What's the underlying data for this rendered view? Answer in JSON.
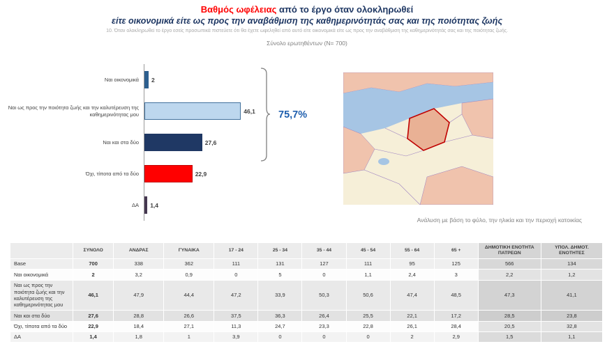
{
  "colors": {
    "title_red": "#ff0000",
    "title_navy": "#1f3864",
    "total_blue": "#1f5fae",
    "bar_nai_oikonomika": "#2d5f8f",
    "bar_poiotita_zois": "#bdd7ee",
    "bar_nai_kai_sta_dyo": "#1f3864",
    "bar_oxi": "#ff0000",
    "bar_da": "#453750"
  },
  "header": {
    "title_red": "Βαθμός ωφέλειας",
    "title_rest": " από το έργο όταν ολοκληρωθεί",
    "subtitle": "είτε οικονομικά είτε ως προς την αναβάθμιση της καθημερινότητάς σας και της ποιότητας ζωής",
    "question": "10. Όταν ολοκληρωθεί το έργο εσείς προσωπικά πιστεύετε ότι θα έχετε ωφεληθεί από αυτό είτε οικονομικά είτε ως προς την αναβάθμιση της καθημερινότητάς σας και της ποιότητας ζωής.",
    "sample": "Σύνολο ερωτηθέντων (N= 700)"
  },
  "chart_data": {
    "type": "bar",
    "orientation": "horizontal",
    "title": "Βαθμός ωφέλειας από το έργο όταν ολοκληρωθεί",
    "categories": [
      "Ναι οικονομικά",
      "Ναι ως προς την ποιότητα ζωής και την καλυτέρευση της καθημερινότητας μου",
      "Ναι και στα δύο",
      "Όχι, τίποτα από τα δύο",
      "ΔΑ"
    ],
    "values": [
      2,
      46.1,
      27.6,
      22.9,
      1.4
    ],
    "value_labels": [
      "2",
      "46,1",
      "27,6",
      "22,9",
      "1,4"
    ],
    "bar_colors": [
      "#2d5f8f",
      "#bdd7ee",
      "#1f3864",
      "#ff0000",
      "#453750"
    ],
    "bar_borders": [
      "",
      "#41719c",
      "",
      "#c00000",
      ""
    ],
    "bracket_total": "75,7%",
    "bracket_covers": [
      "Ναι οικονομικά",
      "Ναι ως προς την ποιότητα ζωής και την καλυτέρευση της καθημερινότητας μου",
      "Ναι και στα δύο"
    ],
    "xlim": [
      0,
      50
    ],
    "unit": "%",
    "grid": false,
    "legend": false
  },
  "analysis_note": "Ανάλυση με βάση το φύλο, την ηλικία και την περιοχή κατοικίας",
  "table": {
    "columns": [
      "",
      "ΣΥΝΟΛΟ",
      "ΑΝΔΡΑΣ",
      "ΓΥΝΑΙΚΑ",
      "17 - 24",
      "25 - 34",
      "35 - 44",
      "45 - 54",
      "55 - 64",
      "65 +",
      "ΔΗΜΟΤΙΚΗ ΕΝΟΤΗΤΑ ΠΑΤΡΕΩΝ",
      "ΥΠΟΛ. ΔΗΜΟΤ. ΕΝΟΤΗΤΕΣ"
    ],
    "rows": [
      {
        "label": "Base",
        "values": [
          "700",
          "338",
          "362",
          "111",
          "131",
          "127",
          "111",
          "95",
          "125",
          "566",
          "134"
        ]
      },
      {
        "label": "Ναι οικονομικά",
        "values": [
          "2",
          "3,2",
          "0,9",
          "0",
          "5",
          "0",
          "1,1",
          "2,4",
          "3",
          "2,2",
          "1,2"
        ]
      },
      {
        "label": "Ναι ως προς την ποιότητα ζωής και την καλυτέρευση της καθημερινότητας μου",
        "values": [
          "46,1",
          "47,9",
          "44,4",
          "47,2",
          "33,9",
          "50,3",
          "50,6",
          "47,4",
          "48,5",
          "47,3",
          "41,1"
        ]
      },
      {
        "label": "Ναι και στα δύο",
        "values": [
          "27,6",
          "28,8",
          "26,6",
          "37,5",
          "36,3",
          "26,4",
          "25,5",
          "22,1",
          "17,2",
          "28,5",
          "23,8"
        ]
      },
      {
        "label": "Όχι, τίποτα από τα δύο",
        "values": [
          "22,9",
          "18,4",
          "27,1",
          "11,3",
          "24,7",
          "23,3",
          "22,8",
          "26,1",
          "28,4",
          "20,5",
          "32,8"
        ]
      },
      {
        "label": "ΔΑ",
        "values": [
          "1,4",
          "1,8",
          "1",
          "3,9",
          "0",
          "0",
          "0",
          "2",
          "2,9",
          "1,5",
          "1,1"
        ]
      }
    ]
  }
}
